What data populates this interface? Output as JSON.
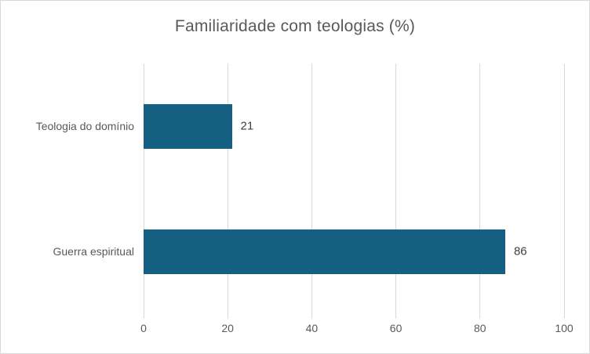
{
  "window": {
    "background_color": "#ffffff",
    "border_color": "#d9d9d9"
  },
  "chart_data": {
    "type": "bar",
    "orientation": "horizontal",
    "title": "Familiaridade com teologias (%)",
    "categories": [
      "Teologia do domínio",
      "Guerra espiritual"
    ],
    "values": [
      21,
      86
    ],
    "data_labels": [
      "21",
      "86"
    ],
    "xlabel": "",
    "ylabel": "",
    "xlim": [
      0,
      100
    ],
    "x_ticks": [
      0,
      20,
      40,
      60,
      80,
      100
    ],
    "x_tick_labels": [
      "0",
      "20",
      "40",
      "60",
      "80",
      "100"
    ],
    "grid": true,
    "legend": false,
    "bar_color": "#156082",
    "gridline_color": "#d9d9d9",
    "title_color": "#595959",
    "axis_label_color": "#595959",
    "category_label_color": "#595959",
    "data_label_color": "#404040"
  }
}
